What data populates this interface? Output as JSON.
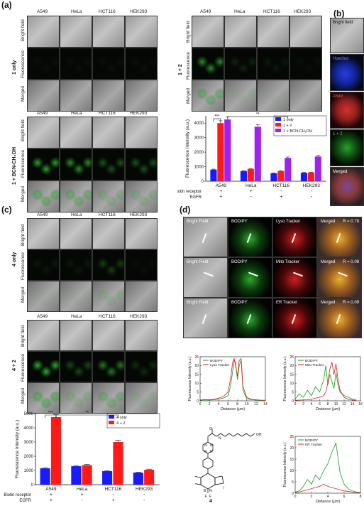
{
  "labels": {
    "a": "(a)",
    "b": "(b)",
    "c": "(c)",
    "d": "(d)"
  },
  "cells": [
    "A549",
    "HeLa",
    "HCT116",
    "HEK293"
  ],
  "rows": [
    "Bright field",
    "Fluorescence",
    "Merged"
  ],
  "panel_a": {
    "g1": "1 only",
    "g2": "1 + 2",
    "g3": "1 + BCN-CH₂OH",
    "sig_1": "***",
    "sig_2": "**"
  },
  "panel_b": {
    "bright": "Bright field",
    "hoechst": "Hoechst",
    "a549": "A549",
    "mix": "1 + 2",
    "merged": "Merged"
  },
  "panel_c": {
    "g1": "4 only",
    "g2": "4 + 2",
    "sig_1": "***",
    "sig_2": "**"
  },
  "panel_d": {
    "bf": "Bright Field",
    "bodipy": "BODIPY",
    "lyso": "Lyso Tracker",
    "mito": "Mito Tracker",
    "er": "ER Tracker",
    "merged": "Merged",
    "r1": "R = 0.78",
    "r2": "R = 0.08",
    "r3": "R = 0.09",
    "compound": "4",
    "ylabel": "Fluorescence Intensity (a.u.)",
    "xlabel": "Distance (μm)"
  },
  "chart_data": [
    {
      "id": "a-bar",
      "type": "bar",
      "categories": [
        "A549",
        "HeLa",
        "HCT116",
        "HEK293"
      ],
      "series": [
        {
          "name": "1 only",
          "color": "#1a1aff",
          "values": [
            800,
            700,
            550,
            580
          ]
        },
        {
          "name": "1 + 2",
          "color": "#ff1a1a",
          "values": [
            4000,
            850,
            700,
            600
          ]
        },
        {
          "name": "1 + BCN-CH₂OH",
          "color": "#a020f0",
          "values": [
            4250,
            3750,
            1600,
            1700
          ]
        }
      ],
      "ylabel": "Fluorescence Intensity (a.u.)",
      "ylim": [
        0,
        4500
      ],
      "yticks": [
        0,
        1000,
        2000,
        3000,
        4000
      ],
      "table": [
        {
          "label": "Biotin receptor",
          "values": [
            "+",
            "+",
            "-",
            "-"
          ]
        },
        {
          "label": "EGFR",
          "values": [
            "+",
            "-",
            "+",
            "-"
          ]
        }
      ],
      "legend": "top-right"
    },
    {
      "id": "c-bar",
      "type": "bar",
      "categories": [
        "A549",
        "HeLa",
        "HCT116",
        "HEK293"
      ],
      "series": [
        {
          "name": "4 only",
          "color": "#1a1aff",
          "values": [
            1150,
            1300,
            950,
            850
          ]
        },
        {
          "name": "4 + 2",
          "color": "#ff1a1a",
          "values": [
            4750,
            1380,
            3000,
            1050
          ]
        }
      ],
      "ylabel": "Fluorescence Intensity (a.u.)",
      "ylim": [
        0,
        5000
      ],
      "yticks": [
        0,
        1000,
        2000,
        3000,
        4000,
        5000
      ],
      "table": [
        {
          "label": "Biotin receptor",
          "values": [
            "+",
            "+",
            "-",
            "-"
          ]
        },
        {
          "label": "EGFR",
          "values": [
            "+",
            "-",
            "+",
            "-"
          ]
        }
      ],
      "legend": "top-right"
    },
    {
      "id": "d-lyso",
      "type": "line",
      "xlim": [
        0,
        14
      ],
      "xticks": [
        0,
        2,
        4,
        6,
        8,
        10,
        12,
        14
      ],
      "ylim": [
        0,
        25
      ],
      "yticks": [
        0,
        5,
        10,
        15,
        20,
        25
      ],
      "series": [
        {
          "name": "BODIPY",
          "color": "#1a9a1a",
          "x": [
            0,
            1,
            2,
            3,
            4,
            5,
            6,
            6.5,
            7,
            7.3,
            7.6,
            8,
            8.4,
            8.8,
            9.2,
            10,
            11,
            12,
            13,
            14
          ],
          "y": [
            0.3,
            0.5,
            0.4,
            0.6,
            1,
            1.5,
            3,
            8,
            17,
            23,
            22,
            12,
            20,
            23,
            6,
            1.2,
            0.6,
            0.4,
            0.3,
            0.2
          ]
        },
        {
          "name": "Lyso Tracker",
          "color": "#e01a1a",
          "x": [
            0,
            1,
            2,
            3,
            4,
            5,
            6,
            6.5,
            7,
            7.3,
            7.6,
            8,
            8.4,
            8.8,
            9.2,
            10,
            11,
            12,
            13,
            14
          ],
          "y": [
            0.5,
            0.7,
            0.6,
            0.9,
            1.5,
            2.5,
            5,
            12,
            22,
            24,
            20,
            14,
            23,
            24,
            8,
            2,
            0.8,
            0.6,
            0.4,
            0.3
          ]
        }
      ]
    },
    {
      "id": "d-mito",
      "type": "line",
      "xlim": [
        0,
        16
      ],
      "xticks": [
        0,
        2,
        4,
        6,
        8,
        10,
        12,
        14,
        16
      ],
      "ylim": [
        0,
        25
      ],
      "yticks": [
        0,
        5,
        10,
        15,
        20,
        25
      ],
      "series": [
        {
          "name": "BODIPY",
          "color": "#1a9a1a",
          "x": [
            0,
            1,
            2,
            3,
            4,
            5,
            6,
            7,
            7.5,
            8,
            8.5,
            9,
            9.5,
            10,
            10.5,
            11,
            12,
            13,
            14,
            15
          ],
          "y": [
            1,
            4,
            2,
            6,
            3,
            8,
            5,
            12,
            20,
            9,
            15,
            11,
            7,
            16,
            9,
            5,
            3,
            2,
            1,
            0.5
          ]
        },
        {
          "name": "Mito Tracker",
          "color": "#e01a1a",
          "x": [
            0,
            1,
            2,
            3,
            4,
            5,
            6,
            7,
            7.5,
            8,
            8.5,
            9,
            9.5,
            10,
            10.5,
            11,
            12,
            13,
            14,
            15
          ],
          "y": [
            0.3,
            0.4,
            0.5,
            0.6,
            0.8,
            1.5,
            2,
            3,
            5,
            10,
            18,
            22,
            15,
            21,
            12,
            6,
            2,
            0.8,
            0.4,
            0.3
          ]
        }
      ]
    },
    {
      "id": "d-er",
      "type": "line",
      "xlim": [
        0,
        8
      ],
      "xticks": [
        0,
        2,
        4,
        6,
        8
      ],
      "ylim": [
        0,
        25
      ],
      "yticks": [
        0,
        5,
        10,
        15,
        20,
        25
      ],
      "series": [
        {
          "name": "BODIPY",
          "color": "#1a9a1a",
          "x": [
            0,
            0.5,
            1,
            1.5,
            2,
            2.5,
            3,
            3.5,
            4,
            4.5,
            5,
            5.5,
            6,
            6.5,
            7,
            7.5,
            8
          ],
          "y": [
            0.5,
            1,
            3,
            6,
            4,
            8,
            6,
            10,
            13,
            18,
            22,
            9,
            4,
            2,
            1,
            0.5,
            0.3
          ]
        },
        {
          "name": "ER Tracker",
          "color": "#e01a1a",
          "x": [
            0,
            0.5,
            1,
            1.5,
            2,
            2.5,
            3,
            3.5,
            4,
            4.5,
            5,
            5.5,
            6,
            6.5,
            7,
            7.5,
            8
          ],
          "y": [
            0.3,
            0.5,
            1,
            1.5,
            2,
            2.5,
            3,
            4,
            3,
            2.5,
            2,
            1.5,
            1,
            0.8,
            0.5,
            0.3,
            0.2
          ]
        }
      ]
    }
  ]
}
